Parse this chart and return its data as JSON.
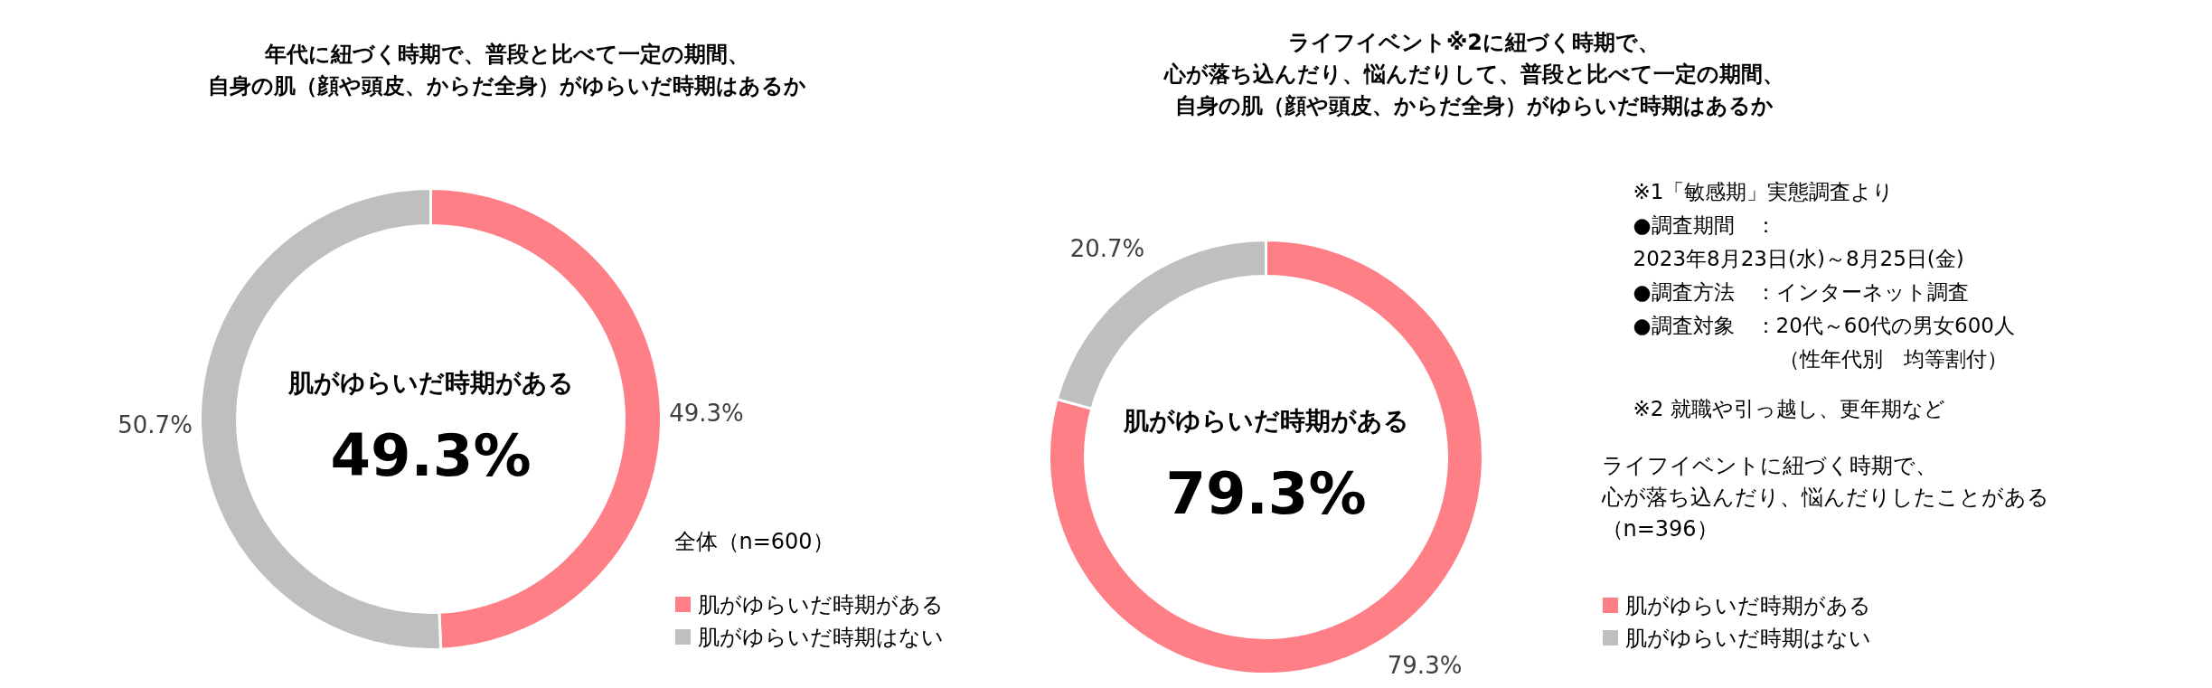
{
  "chart_data": [
    {
      "type": "donut",
      "title": "年代に紐づく時期で、普段と比べて一定の期間、自身の肌（顔や頭皮、からだ全身）がゆらいだ時期はあるか",
      "categories": [
        "肌がゆらいだ時期がある",
        "肌がゆらいだ時期はない"
      ],
      "values": [
        49.3,
        50.7
      ],
      "colors": [
        "#ff7f87",
        "#bfbfbf"
      ],
      "value_labels": [
        "49.3%",
        "50.7%"
      ],
      "legend": "bottom right",
      "legend_title": "全体（n=600）",
      "annotations": [
        "肌がゆらいだ時期がある",
        "49.3%"
      ]
    },
    {
      "type": "donut",
      "title": "ライフイベント※2に紐づく時期で、心が落ち込んだり、悩んだりして、普段と比べて一定の期間、自身の肌（顔や頭皮、からだ全身）がゆらいだ時期はあるか",
      "categories": [
        "肌がゆらいだ時期がある",
        "肌がゆらいだ時期はない"
      ],
      "values": [
        79.3,
        20.7
      ],
      "colors": [
        "#ff7f87",
        "#bfbfbf"
      ],
      "value_labels": [
        "79.3%",
        "20.7%"
      ],
      "legend": "bottom right",
      "legend_title": "ライフイベントに紐づく時期で、心が落ち込んだり、悩んだりしたことがある（n=396）",
      "annotations": [
        "肌がゆらいだ時期がある",
        "79.3%",
        "※1「敏感期」実態調査より",
        "●調査期間　：",
        "2023年8月23日(水)～8月25日(金)",
        "●調査方法　：インターネット調査",
        "●調査対象　：20代～60代の男女600人",
        "　　　　　　　（性年代別　均等割付）",
        "※2 就職や引っ越し、更年期など"
      ]
    }
  ]
}
